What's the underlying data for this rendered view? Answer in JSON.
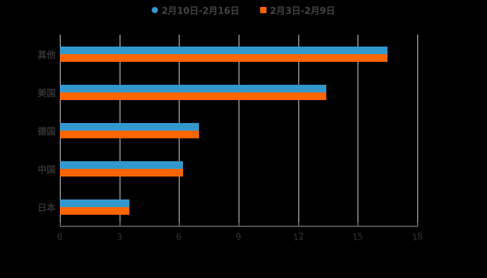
{
  "legend": [
    {
      "label": "2月10日-2月16日",
      "color": "#3399cc",
      "shape": "circle"
    },
    {
      "label": "2月3日-2月9日",
      "color": "#ff6600",
      "shape": "square"
    }
  ],
  "chart_data": {
    "type": "bar",
    "orientation": "horizontal",
    "title": "",
    "categories": [
      "其他",
      "美国",
      "德国",
      "中国",
      "日本"
    ],
    "series": [
      {
        "name": "2月10日-2月16日",
        "color": "#3399cc",
        "values": [
          16.5,
          13.4,
          7.0,
          6.2,
          3.5
        ]
      },
      {
        "name": "2月3日-2月9日",
        "color": "#ff6600",
        "values": [
          16.5,
          13.4,
          7.0,
          6.2,
          3.5
        ]
      }
    ],
    "xlabel": "",
    "ylabel": "",
    "xlim": [
      0,
      18
    ],
    "x_ticks": [
      "0",
      "3",
      "6",
      "9",
      "12",
      "15",
      "18"
    ],
    "grid": true,
    "legend_position": "top"
  }
}
